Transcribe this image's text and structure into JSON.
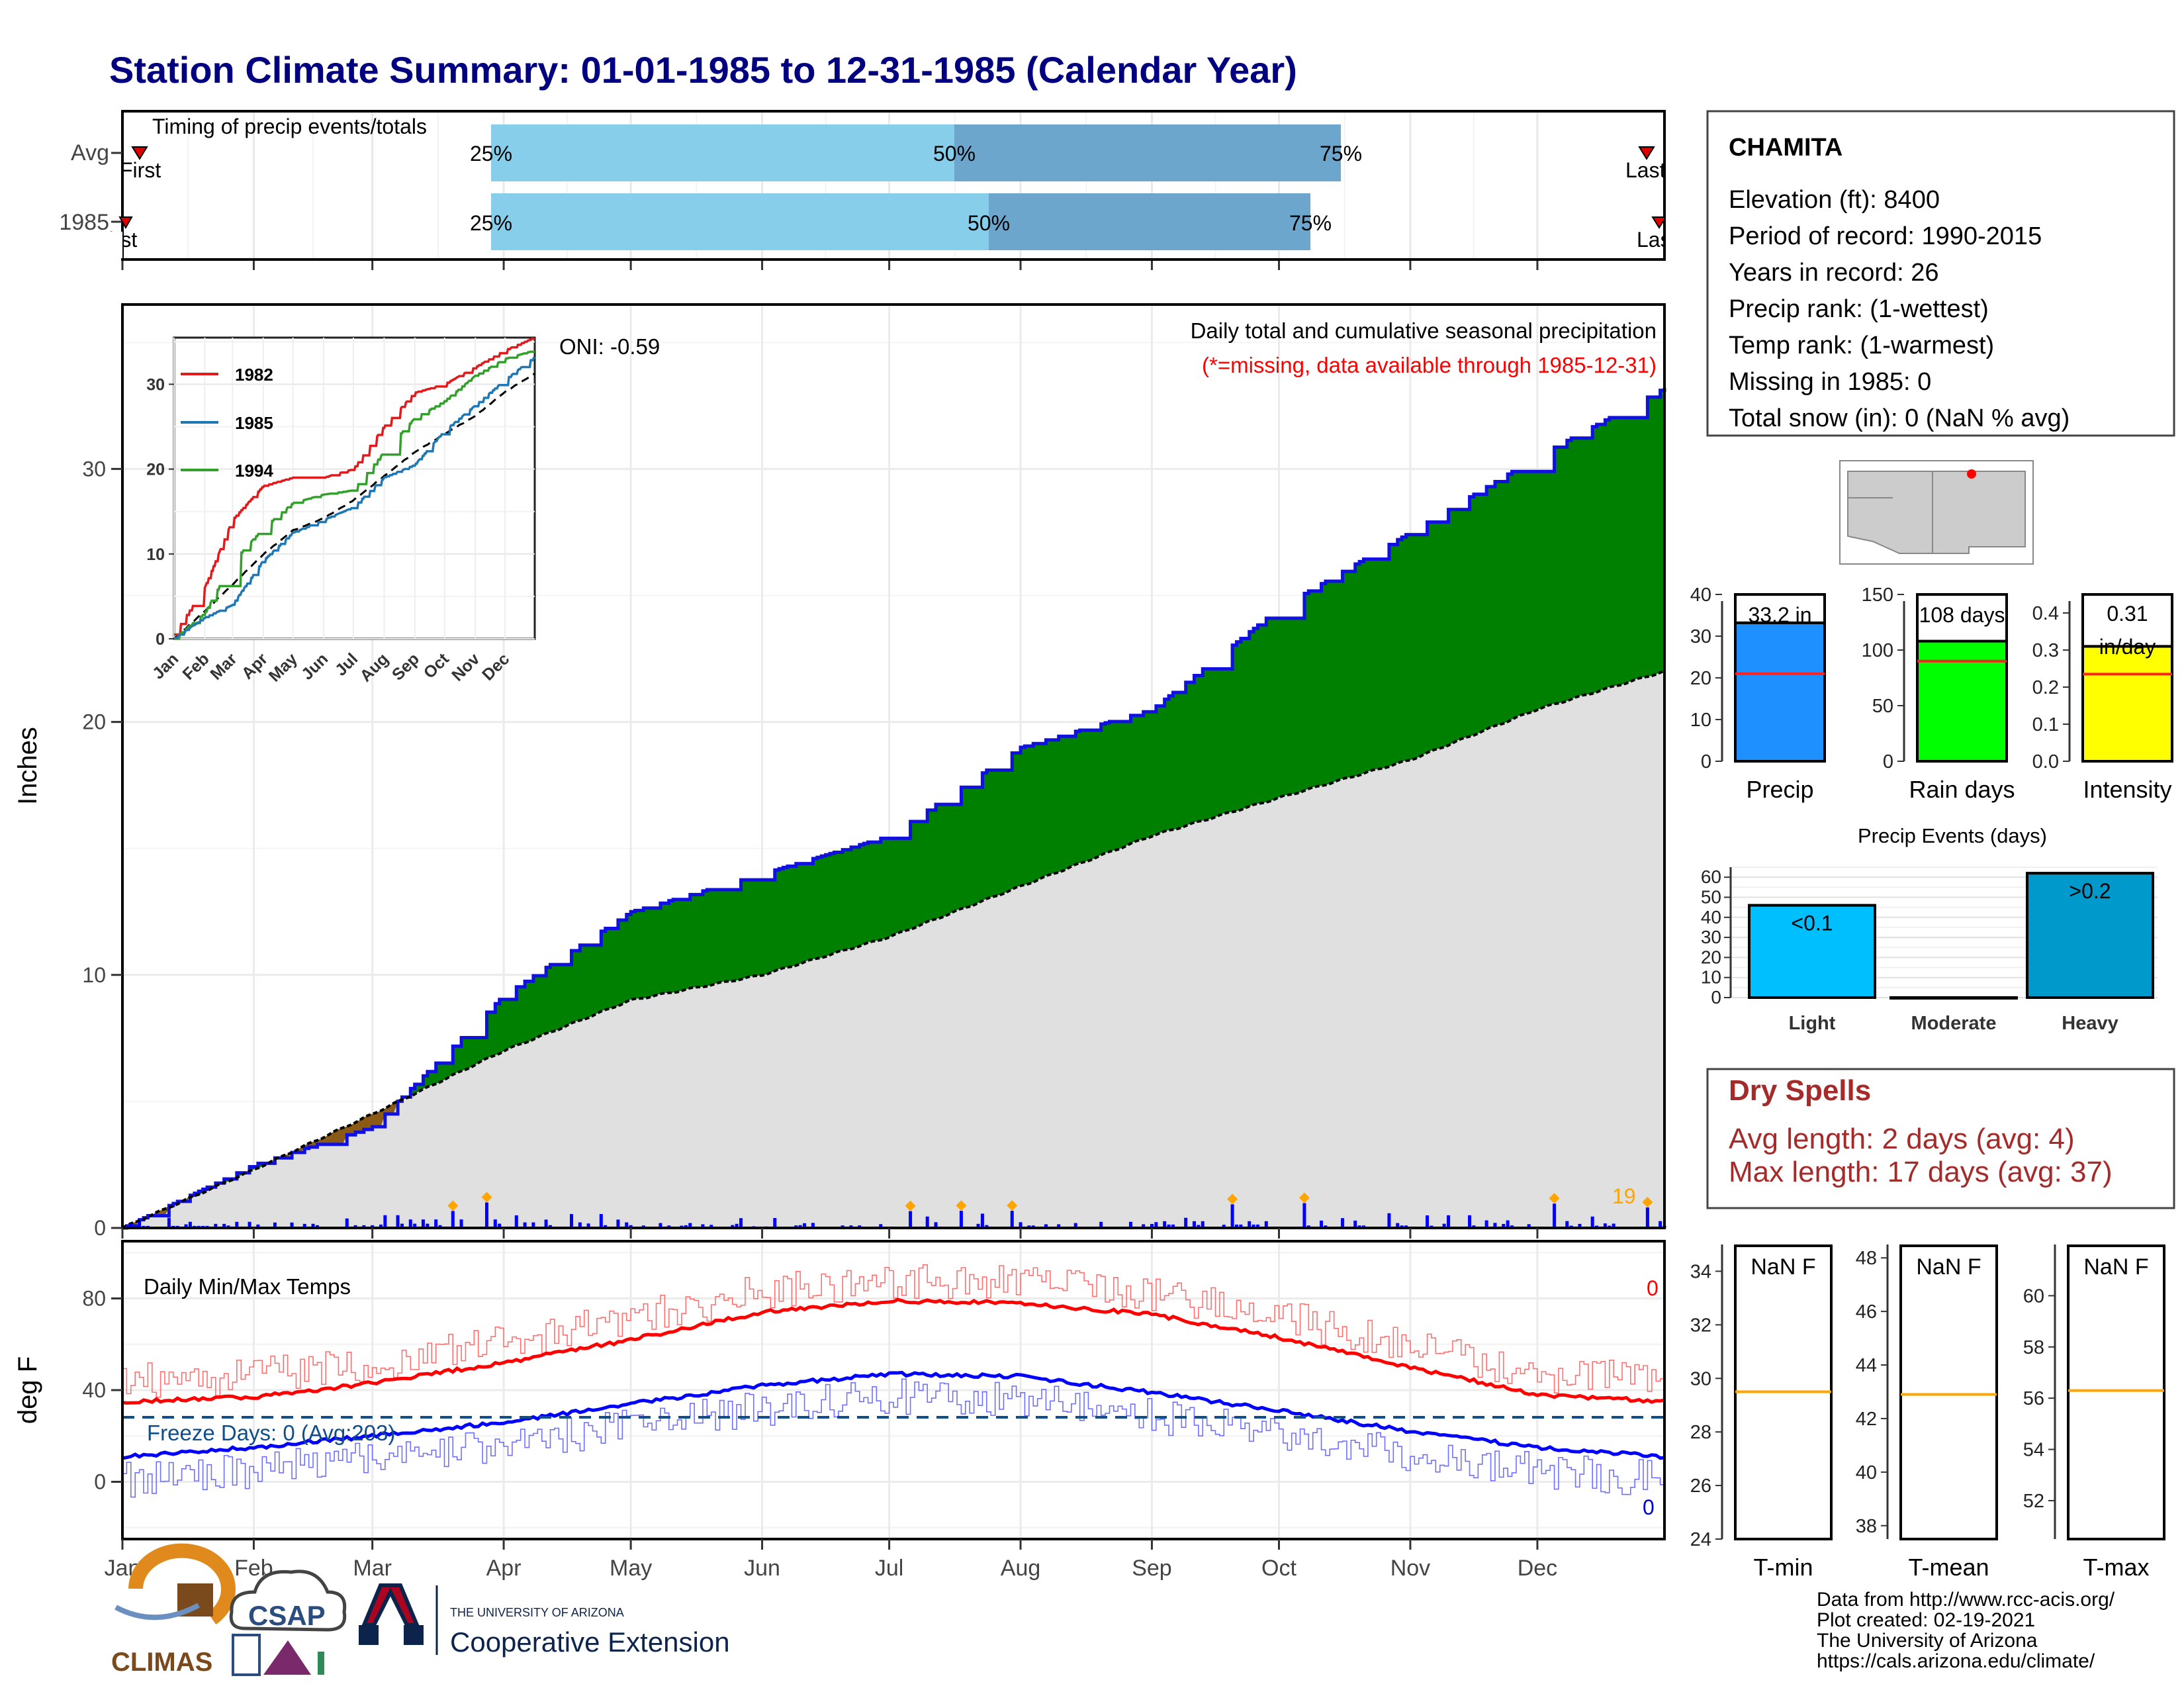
{
  "title": "Station Climate Summary: 01-01-1985 to 12-31-1985 (Calendar Year)",
  "colors": {
    "title": "#000080",
    "precip_fill": "#008000",
    "below_fill": "#8B5A14",
    "avg_fill": "#E0E0E0",
    "bars": "#0000FF",
    "dry": "#A52A2A",
    "tmax": "#FF0000",
    "tmin": "#0000FF",
    "avgline": "#FFA500"
  },
  "timing": {
    "label": "Timing of precip events/totals",
    "rows": [
      "Avg",
      "1985"
    ],
    "first_label": "First",
    "last_label": "Last",
    "avg": {
      "p25": "25%",
      "p50": "50%",
      "p75": "75%",
      "p25_date": "03-31",
      "p50_date": "07-06",
      "p75_date": "10-16"
    },
    "y1985": {
      "p25": "25%",
      "p50": "50%",
      "p75": "75%",
      "p25_date": "03-31",
      "p50_date": "07-14",
      "p75_date": "10-09"
    }
  },
  "precip_panel": {
    "ylabel": "Inches",
    "oni": "ONI: -0.59",
    "caption1": "Daily total and cumulative seasonal precipitation",
    "caption2": "(*=missing, data available through 1985-12-31)",
    "count": "19",
    "yticks": [
      "0",
      "10",
      "20",
      "30"
    ]
  },
  "inset": {
    "legend": [
      "1982",
      "1985",
      "1994"
    ],
    "yticks": [
      "0",
      "10",
      "20",
      "30"
    ],
    "months": [
      "Jan",
      "Feb",
      "Mar",
      "Apr",
      "May",
      "Jun",
      "Jul",
      "Aug",
      "Sep",
      "Oct",
      "Nov",
      "Dec"
    ]
  },
  "temp_panel": {
    "ylabel": "deg F",
    "label": "Daily Min/Max Temps",
    "freeze": "Freeze Days: 0 (Avg:203)",
    "max_count": "0",
    "min_count": "0",
    "yticks": [
      "0",
      "40",
      "80"
    ]
  },
  "months": [
    "Jan",
    "Feb",
    "Mar",
    "Apr",
    "May",
    "Jun",
    "Jul",
    "Aug",
    "Sep",
    "Oct",
    "Nov",
    "Dec"
  ],
  "station": {
    "name": "CHAMITA",
    "lines": [
      "Elevation (ft): 8400",
      "Period of record: 1990-2015",
      "Years in record: 26",
      "Precip rank:  (1-wettest)",
      "Temp rank:  (1-warmest)",
      "Missing in 1985: 0",
      "Total snow (in): 0 (NaN % avg)"
    ]
  },
  "summary_bars": [
    {
      "label": "Precip",
      "value_text": "33.2 in",
      "value": 33.2,
      "avg": 21,
      "ymax": 40,
      "ticks": [
        "0",
        "10",
        "20",
        "30",
        "40"
      ],
      "color": "#1E90FF"
    },
    {
      "label": "Rain days",
      "value_text": "108 days",
      "value": 108,
      "avg": 90,
      "ymax": 150,
      "ticks": [
        "0",
        "50",
        "100",
        "150"
      ],
      "color": "#00FF00"
    },
    {
      "label": "Intensity",
      "value_text": "0.31 in/day",
      "value_line1": "0.31",
      "value_line2": "in/day",
      "value": 0.31,
      "avg": 0.235,
      "ymax": 0.45,
      "ticks": [
        "0.0",
        "0.1",
        "0.2",
        "0.3",
        "0.4"
      ],
      "color": "#FFFF00"
    }
  ],
  "events": {
    "title": "Precip Events (days)",
    "ticks": [
      "0",
      "10",
      "20",
      "30",
      "40",
      "50",
      "60"
    ],
    "cats": [
      {
        "label": "Light",
        "text": "<0.1",
        "value": 46,
        "color": "#00BFFF"
      },
      {
        "label": "Moderate",
        "text": "",
        "value": 0,
        "color": "#00BFFF"
      },
      {
        "label": "Heavy",
        "text": ">0.2",
        "value": 62,
        "color": "#0099CC"
      }
    ]
  },
  "dry_spells": {
    "title": "Dry Spells",
    "avg": "Avg length: 2 days (avg: 4)",
    "max": "Max length: 17 days (avg: 37)"
  },
  "temp_summary": [
    {
      "label": "T-min",
      "value": "NaN F",
      "ticks": [
        "24",
        "26",
        "28",
        "30",
        "32",
        "34"
      ],
      "tmin": 24,
      "tmax": 35,
      "avg": 29.5
    },
    {
      "label": "T-mean",
      "value": "NaN F",
      "ticks": [
        "38",
        "40",
        "42",
        "44",
        "46",
        "48"
      ],
      "tmin": 37.5,
      "tmax": 48.5,
      "avg": 42.9
    },
    {
      "label": "T-max",
      "value": "NaN F",
      "ticks": [
        "52",
        "54",
        "56",
        "58",
        "60"
      ],
      "tmin": 50.5,
      "tmax": 62,
      "avg": 56.3
    }
  ],
  "footer": {
    "lines": [
      "Data from http://www.rcc-acis.org/",
      "Plot created: 02-19-2021",
      "The University of Arizona",
      "https://cals.arizona.edu/climate/"
    ],
    "climas": "CLIMAS",
    "csap": "CSAP",
    "ua_small": "THE UNIVERSITY OF ARIZONA",
    "coop": "Cooperative Extension"
  },
  "chart_data": [
    {
      "type": "area",
      "title": "Daily total and cumulative seasonal precipitation",
      "ylabel": "Inches",
      "ylim": [
        0,
        36
      ],
      "x": [
        "Jan-01",
        "Feb-01",
        "Mar-01",
        "Apr-01",
        "May-01",
        "Jun-01",
        "Jul-01",
        "Aug-01",
        "Sep-01",
        "Oct-01",
        "Nov-01",
        "Dec-01",
        "Dec-31"
      ],
      "series": [
        {
          "name": "1985",
          "values": [
            0,
            2.5,
            4.0,
            9.2,
            12.5,
            14.0,
            15.5,
            19.0,
            20.5,
            24.5,
            27.5,
            30.5,
            33.2
          ]
        },
        {
          "name": "Avg",
          "values": [
            0,
            2.3,
            4.5,
            7.0,
            9.0,
            10.0,
            11.5,
            13.5,
            15.5,
            17.0,
            18.5,
            20.5,
            22.0
          ]
        }
      ]
    },
    {
      "type": "line",
      "title": "Daily Min/Max Temps",
      "ylabel": "deg F",
      "ylim": [
        -25,
        105
      ],
      "x": [
        "Jan",
        "Feb",
        "Mar",
        "Apr",
        "May",
        "Jun",
        "Jul",
        "Aug",
        "Sep",
        "Oct",
        "Nov",
        "Dec",
        "Dec-31"
      ],
      "series": [
        {
          "name": "Avg max",
          "values": [
            35,
            37,
            43,
            52,
            62,
            74,
            79,
            78,
            73,
            63,
            50,
            38,
            35
          ]
        },
        {
          "name": "Avg min",
          "values": [
            11,
            15,
            20,
            26,
            34,
            42,
            47,
            46,
            39,
            31,
            22,
            15,
            11
          ]
        }
      ],
      "freeze_line": 32
    }
  ]
}
